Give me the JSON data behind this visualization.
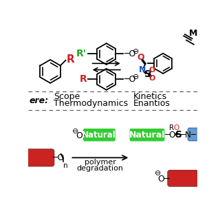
{
  "bg_color": "#ffffff",
  "red_color": "#cc2222",
  "green_color": "#22aa22",
  "blue_color": "#6699cc",
  "natural_green": "#33cc33",
  "black": "#000000",
  "blue_text": "#2255cc",
  "red_text": "#cc2222",
  "middle_ere": "ere:",
  "scope_line1": "Scope",
  "scope_line2": "Thermodynamics",
  "kinetics_line1": "Kinetics",
  "kinetics_line2": "Enantios",
  "natural_label": "Natural",
  "polymer_label": "polymer\ndegradation"
}
